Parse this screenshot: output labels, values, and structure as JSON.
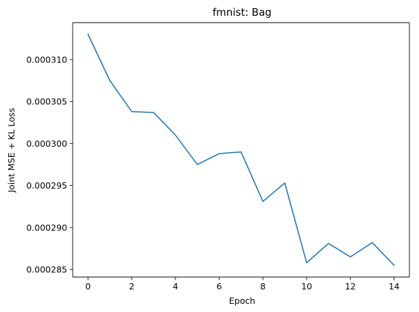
{
  "chart_data": {
    "type": "line",
    "title": "fmnist: Bag",
    "xlabel": "Epoch",
    "ylabel": "Joint MSE + KL Loss",
    "x": [
      0,
      1,
      2,
      3,
      4,
      5,
      6,
      7,
      8,
      9,
      10,
      11,
      12,
      13,
      14
    ],
    "series": [
      {
        "values": [
          0.000313,
          0.0003075,
          0.0003038,
          0.0003037,
          0.000301,
          0.0002975,
          0.0002988,
          0.000299,
          0.0002931,
          0.0002953,
          0.0002858,
          0.0002881,
          0.0002865,
          0.0002882,
          0.0002855
        ],
        "color": "#1f77b4"
      }
    ],
    "xticks": [
      0,
      2,
      4,
      6,
      8,
      10,
      12,
      14
    ],
    "xtick_labels": [
      "0",
      "2",
      "4",
      "6",
      "8",
      "10",
      "12",
      "14"
    ],
    "yticks": [
      0.000285,
      0.00029,
      0.000295,
      0.0003,
      0.000305,
      0.00031
    ],
    "ytick_labels": [
      "0.000285",
      "0.000290",
      "0.000295",
      "0.000300",
      "0.000305",
      "0.000310"
    ],
    "xlim": [
      -0.7,
      14.7
    ],
    "ylim": [
      0.0002841,
      0.0003144
    ],
    "grid": false,
    "legend": "none"
  }
}
